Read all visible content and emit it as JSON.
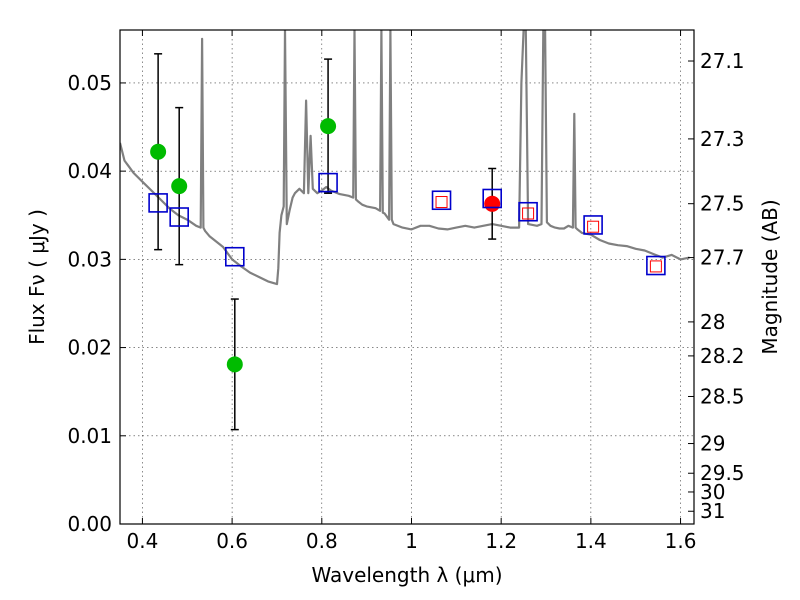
{
  "chart_data": {
    "type": "scatter",
    "title": "",
    "xlabel": "Wavelength  λ (μm)",
    "ylabel": "Flux  Fν  ( μJy )",
    "ylabel_right": "Magnitude (AB)",
    "xlim": [
      0.35,
      1.63
    ],
    "ylim": [
      0.0,
      0.056
    ],
    "grid": true,
    "x_ticks": [
      {
        "value": 0.4,
        "label": "0.4"
      },
      {
        "value": 0.6,
        "label": "0.6"
      },
      {
        "value": 0.8,
        "label": "0.8"
      },
      {
        "value": 1.0,
        "label": "1"
      },
      {
        "value": 1.2,
        "label": "1.2"
      },
      {
        "value": 1.4,
        "label": "1.4"
      },
      {
        "value": 1.6,
        "label": "1.6"
      }
    ],
    "y_ticks": [
      {
        "value": 0.0,
        "label": "0.00"
      },
      {
        "value": 0.01,
        "label": "0.01"
      },
      {
        "value": 0.02,
        "label": "0.02"
      },
      {
        "value": 0.03,
        "label": "0.03"
      },
      {
        "value": 0.04,
        "label": "0.04"
      },
      {
        "value": 0.05,
        "label": "0.05"
      }
    ],
    "right_ticks": [
      {
        "mag": 27.1,
        "label": "27.1"
      },
      {
        "mag": 27.3,
        "label": "27.3"
      },
      {
        "mag": 27.5,
        "label": "27.5"
      },
      {
        "mag": 27.7,
        "label": "27.7"
      },
      {
        "mag": 28.0,
        "label": "28"
      },
      {
        "mag": 28.2,
        "label": "28.2"
      },
      {
        "mag": 28.5,
        "label": "28.5"
      },
      {
        "mag": 29.0,
        "label": "29"
      },
      {
        "mag": 29.5,
        "label": "29.5"
      },
      {
        "mag": 30.0,
        "label": "30"
      },
      {
        "mag": 31.0,
        "label": "31"
      }
    ],
    "model_spectrum": {
      "name": "model SED",
      "color": "#808080",
      "x": [
        0.35,
        0.36,
        0.37,
        0.38,
        0.4,
        0.42,
        0.44,
        0.46,
        0.48,
        0.5,
        0.52,
        0.53,
        0.533,
        0.536,
        0.54,
        0.55,
        0.58,
        0.6,
        0.62,
        0.64,
        0.66,
        0.68,
        0.7,
        0.703,
        0.706,
        0.71,
        0.715,
        0.718,
        0.722,
        0.728,
        0.735,
        0.74,
        0.75,
        0.76,
        0.765,
        0.77,
        0.775,
        0.78,
        0.79,
        0.8,
        0.81,
        0.82,
        0.84,
        0.86,
        0.87,
        0.873,
        0.876,
        0.88,
        0.89,
        0.9,
        0.92,
        0.93,
        0.933,
        0.936,
        0.94,
        0.95,
        0.953,
        0.956,
        0.96,
        0.98,
        1.0,
        1.02,
        1.04,
        1.06,
        1.08,
        1.1,
        1.12,
        1.14,
        1.16,
        1.18,
        1.2,
        1.22,
        1.24,
        1.245,
        1.25,
        1.255,
        1.26,
        1.28,
        1.29,
        1.294,
        1.298,
        1.302,
        1.31,
        1.32,
        1.33,
        1.34,
        1.35,
        1.36,
        1.363,
        1.366,
        1.37,
        1.38,
        1.4,
        1.42,
        1.44,
        1.46,
        1.48,
        1.5,
        1.52,
        1.54,
        1.56,
        1.58,
        1.6,
        1.62
      ],
      "y": [
        0.0432,
        0.0412,
        0.0405,
        0.0398,
        0.0388,
        0.0378,
        0.0368,
        0.0358,
        0.035,
        0.0345,
        0.0338,
        0.0336,
        0.055,
        0.0336,
        0.0332,
        0.0326,
        0.0314,
        0.03,
        0.0292,
        0.0285,
        0.028,
        0.0275,
        0.0272,
        0.029,
        0.033,
        0.035,
        0.036,
        0.056,
        0.034,
        0.0355,
        0.037,
        0.0375,
        0.038,
        0.0375,
        0.048,
        0.0375,
        0.044,
        0.038,
        0.0375,
        0.0378,
        0.0382,
        0.0378,
        0.0374,
        0.0372,
        0.037,
        0.056,
        0.0368,
        0.0366,
        0.0362,
        0.036,
        0.0358,
        0.0355,
        0.056,
        0.0353,
        0.0352,
        0.0345,
        0.056,
        0.0345,
        0.034,
        0.0336,
        0.0334,
        0.0338,
        0.0338,
        0.0335,
        0.0334,
        0.0336,
        0.0338,
        0.0336,
        0.0338,
        0.034,
        0.0338,
        0.0336,
        0.0336,
        0.05,
        0.056,
        0.056,
        0.034,
        0.0338,
        0.034,
        0.056,
        0.056,
        0.0342,
        0.0338,
        0.0336,
        0.0335,
        0.0335,
        0.0338,
        0.0336,
        0.0465,
        0.0336,
        0.0334,
        0.033,
        0.0328,
        0.0322,
        0.0318,
        0.0316,
        0.0315,
        0.0312,
        0.031,
        0.0306,
        0.0302,
        0.0305,
        0.03,
        0.0302
      ]
    },
    "series": [
      {
        "name": "observed (green)",
        "marker": "circle",
        "color": "#00bb00",
        "points": [
          {
            "x": 0.435,
            "y": 0.0422,
            "err": 0.0111
          },
          {
            "x": 0.482,
            "y": 0.0383,
            "err": 0.0089
          },
          {
            "x": 0.606,
            "y": 0.0181,
            "err": 0.0074
          },
          {
            "x": 0.814,
            "y": 0.0451,
            "err": 0.0076
          }
        ]
      },
      {
        "name": "observed (red)",
        "marker": "circle",
        "color": "#ff0000",
        "points": [
          {
            "x": 1.18,
            "y": 0.0363,
            "err": 0.004
          }
        ]
      },
      {
        "name": "model photometry (blue)",
        "marker": "square",
        "color": "#0000cc",
        "points": [
          {
            "x": 0.435,
            "y": 0.0364
          },
          {
            "x": 0.482,
            "y": 0.0348
          },
          {
            "x": 0.606,
            "y": 0.0303
          },
          {
            "x": 0.814,
            "y": 0.0387
          },
          {
            "x": 1.067,
            "y": 0.0367
          },
          {
            "x": 1.18,
            "y": 0.0369
          },
          {
            "x": 1.26,
            "y": 0.0354
          },
          {
            "x": 1.405,
            "y": 0.0339
          },
          {
            "x": 1.545,
            "y": 0.0293
          }
        ]
      },
      {
        "name": "model photometry (red small)",
        "marker": "square-small",
        "color": "#ff0000",
        "points": [
          {
            "x": 1.067,
            "y": 0.0365
          },
          {
            "x": 1.26,
            "y": 0.0352
          },
          {
            "x": 1.405,
            "y": 0.0337
          },
          {
            "x": 1.545,
            "y": 0.0292
          }
        ]
      }
    ]
  }
}
